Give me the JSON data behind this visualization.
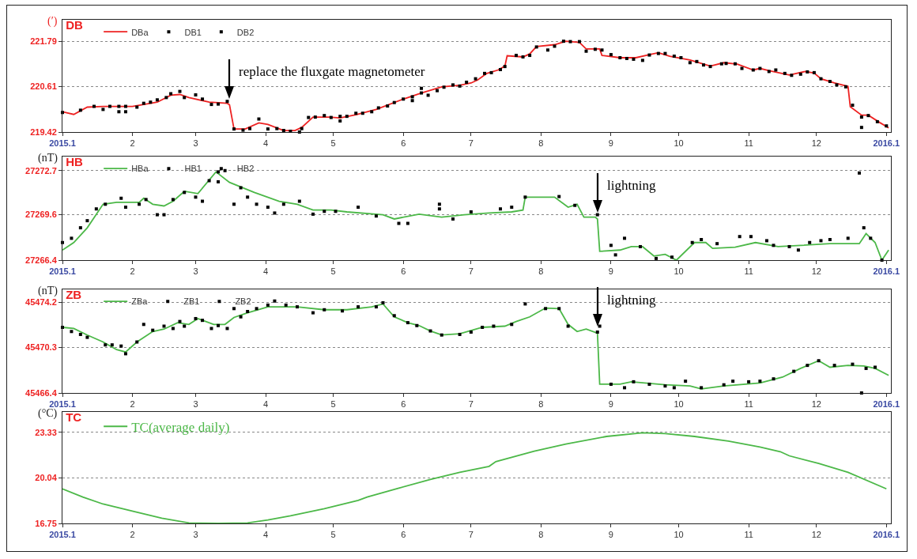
{
  "chart_data": [
    {
      "type": "line",
      "title": "DB",
      "ylabel": "(′)",
      "xlim": [
        "2015-01-01",
        "2016-01-03"
      ],
      "xticks": [
        {
          "value": "2015-01-01",
          "label": "2015.1"
        },
        {
          "value": "2015-02-01",
          "label": "2"
        },
        {
          "value": "2015-03-01",
          "label": "3"
        },
        {
          "value": "2015-04-01",
          "label": "4"
        },
        {
          "value": "2015-05-01",
          "label": "5"
        },
        {
          "value": "2015-06-01",
          "label": "6"
        },
        {
          "value": "2015-07-01",
          "label": "7"
        },
        {
          "value": "2015-08-01",
          "label": "8"
        },
        {
          "value": "2015-09-01",
          "label": "9"
        },
        {
          "value": "2015-10-01",
          "label": "10"
        },
        {
          "value": "2015-11-01",
          "label": "11"
        },
        {
          "value": "2015-12-01",
          "label": "12"
        },
        {
          "value": "2016-01-01",
          "label": "2016.1"
        }
      ],
      "ylim": [
        219.42,
        222.35
      ],
      "yticks": [
        219.42,
        220.61,
        221.79
      ],
      "grid": "y",
      "legend": "top left",
      "series": [
        {
          "name": "DBa",
          "type": "line",
          "color": "#ee2222",
          "x": [
            "2015-01-01",
            "2015-01-06",
            "2015-01-12",
            "2015-01-19",
            "2015-02-01",
            "2015-02-12",
            "2015-02-18",
            "2015-02-22",
            "2015-02-26",
            "2015-03-07",
            "2015-03-15",
            "2015-03-16",
            "2015-03-18",
            "2015-03-23",
            "2015-03-29",
            "2015-04-02",
            "2015-04-09",
            "2015-04-14",
            "2015-04-17",
            "2015-04-22",
            "2015-04-29",
            "2015-05-04",
            "2015-05-11",
            "2015-05-20",
            "2015-06-01",
            "2015-06-09",
            "2015-06-18",
            "2015-06-26",
            "2015-07-01",
            "2015-07-04",
            "2015-07-08",
            "2015-07-13",
            "2015-07-16",
            "2015-07-17",
            "2015-07-24",
            "2015-07-27",
            "2015-07-30",
            "2015-08-07",
            "2015-08-12",
            "2015-08-18",
            "2015-08-21",
            "2015-08-27",
            "2015-08-28",
            "2015-09-05",
            "2015-09-12",
            "2015-09-18",
            "2015-09-22",
            "2015-09-27",
            "2015-10-06",
            "2015-10-15",
            "2015-10-21",
            "2015-10-27",
            "2015-11-03",
            "2015-11-06",
            "2015-11-10",
            "2015-11-19",
            "2015-11-26",
            "2015-11-30",
            "2015-12-03",
            "2015-12-09",
            "2015-12-15",
            "2015-12-16",
            "2015-12-21",
            "2015-12-24",
            "2015-12-29",
            "2016-01-02"
          ],
          "values": [
            219.95,
            219.88,
            220.07,
            220.09,
            220.09,
            220.2,
            220.38,
            220.4,
            220.32,
            220.2,
            220.17,
            220.13,
            219.5,
            219.5,
            219.66,
            219.62,
            219.46,
            219.46,
            219.54,
            219.81,
            219.81,
            219.79,
            219.87,
            220.01,
            220.28,
            220.44,
            220.6,
            220.64,
            220.7,
            220.78,
            220.95,
            221.04,
            221.14,
            221.41,
            221.38,
            221.46,
            221.65,
            221.7,
            221.79,
            221.76,
            221.59,
            221.59,
            221.42,
            221.36,
            221.36,
            221.44,
            221.49,
            221.4,
            221.3,
            221.14,
            221.23,
            221.19,
            221.04,
            221.08,
            221.02,
            220.91,
            221.0,
            220.96,
            220.81,
            220.7,
            220.61,
            220.08,
            219.86,
            219.86,
            219.67,
            219.53
          ]
        },
        {
          "name": "DB1",
          "type": "scatter",
          "marker": "square",
          "color": "#000000",
          "x": [
            "2015-01-01",
            "2015-01-15",
            "2015-01-22",
            "2015-01-26",
            "2015-01-29",
            "2015-02-06",
            "2015-02-12",
            "2015-02-18",
            "2015-02-24",
            "2015-03-04",
            "2015-03-11",
            "2015-03-18",
            "2015-03-25",
            "2015-04-02",
            "2015-04-09",
            "2015-04-16",
            "2015-04-20",
            "2015-04-27",
            "2015-05-04",
            "2015-05-07",
            "2015-05-14",
            "2015-05-21",
            "2015-05-28",
            "2015-06-05",
            "2015-06-09",
            "2015-06-12",
            "2015-06-19",
            "2015-06-26",
            "2015-07-03",
            "2015-07-10",
            "2015-07-16",
            "2015-07-24",
            "2015-07-30",
            "2015-08-07",
            "2015-08-14",
            "2015-08-21",
            "2015-08-28",
            "2015-09-05",
            "2015-09-11",
            "2015-09-18",
            "2015-09-25",
            "2015-10-02",
            "2015-10-09",
            "2015-10-15",
            "2015-10-22",
            "2015-10-29",
            "2015-11-06",
            "2015-11-13",
            "2015-11-20",
            "2015-11-27",
            "2015-12-03",
            "2015-12-10",
            "2015-12-17",
            "2015-12-21",
            "2015-12-28"
          ],
          "values": [
            219.93,
            220.09,
            220.09,
            219.95,
            219.95,
            220.17,
            220.26,
            220.42,
            220.32,
            220.28,
            220.15,
            219.5,
            219.51,
            219.5,
            219.46,
            219.42,
            219.8,
            219.85,
            219.83,
            219.83,
            219.91,
            220.05,
            220.19,
            220.34,
            220.56,
            220.38,
            220.59,
            220.62,
            220.81,
            220.97,
            221.13,
            221.38,
            221.64,
            221.66,
            221.78,
            221.53,
            221.56,
            221.36,
            221.32,
            221.43,
            221.47,
            221.36,
            221.26,
            221.13,
            221.21,
            221.08,
            221.08,
            221.04,
            220.9,
            220.99,
            220.81,
            220.65,
            220.12,
            219.54,
            219.69
          ]
        },
        {
          "name": "DB2",
          "type": "scatter",
          "marker": "square",
          "color": "#000000",
          "x": [
            "2015-01-09",
            "2015-01-19",
            "2015-01-26",
            "2015-01-29",
            "2015-02-03",
            "2015-02-09",
            "2015-02-16",
            "2015-02-22",
            "2015-03-01",
            "2015-03-08",
            "2015-03-15",
            "2015-03-22",
            "2015-03-29",
            "2015-04-06",
            "2015-04-12",
            "2015-04-17",
            "2015-04-23",
            "2015-04-30",
            "2015-05-04",
            "2015-05-11",
            "2015-05-18",
            "2015-05-25",
            "2015-06-01",
            "2015-06-05",
            "2015-06-09",
            "2015-06-16",
            "2015-06-23",
            "2015-06-29",
            "2015-07-07",
            "2015-07-14",
            "2015-07-21",
            "2015-07-27",
            "2015-08-04",
            "2015-08-11",
            "2015-08-18",
            "2015-08-25",
            "2015-09-01",
            "2015-09-08",
            "2015-09-15",
            "2015-09-22",
            "2015-09-29",
            "2015-10-06",
            "2015-10-12",
            "2015-10-20",
            "2015-10-26",
            "2015-11-03",
            "2015-11-10",
            "2015-11-17",
            "2015-11-24",
            "2015-11-30",
            "2015-12-07",
            "2015-12-14",
            "2015-12-21",
            "2015-12-24",
            "2016-01-01"
          ],
          "values": [
            219.99,
            220.01,
            220.09,
            220.09,
            220.07,
            220.2,
            220.32,
            220.48,
            220.39,
            220.14,
            220.22,
            219.47,
            219.76,
            219.51,
            219.44,
            219.51,
            219.81,
            219.8,
            219.71,
            219.91,
            219.95,
            220.1,
            220.28,
            220.24,
            220.44,
            220.5,
            220.65,
            220.72,
            220.95,
            221.05,
            221.42,
            221.42,
            221.56,
            221.79,
            221.78,
            221.58,
            221.44,
            221.34,
            221.29,
            221.47,
            221.4,
            221.23,
            221.17,
            221.2,
            221.2,
            221.04,
            221.0,
            220.95,
            220.93,
            220.97,
            220.74,
            220.6,
            219.81,
            219.85,
            219.58
          ]
        }
      ],
      "annotations": [
        {
          "text": "replace the fluxgate magnetometer",
          "x": "2015-03-16",
          "y": 220.13
        }
      ]
    },
    {
      "type": "line",
      "title": "HB",
      "ylabel": "(nT)",
      "xlim": [
        "2015-01-01",
        "2016-01-03"
      ],
      "xticks": [
        {
          "value": "2015-01-01",
          "label": "2015.1"
        },
        {
          "value": "2015-02-01",
          "label": "2"
        },
        {
          "value": "2015-03-01",
          "label": "3"
        },
        {
          "value": "2015-04-01",
          "label": "4"
        },
        {
          "value": "2015-05-01",
          "label": "5"
        },
        {
          "value": "2015-06-01",
          "label": "6"
        },
        {
          "value": "2015-07-01",
          "label": "7"
        },
        {
          "value": "2015-08-01",
          "label": "8"
        },
        {
          "value": "2015-09-01",
          "label": "9"
        },
        {
          "value": "2015-10-01",
          "label": "10"
        },
        {
          "value": "2015-11-01",
          "label": "11"
        },
        {
          "value": "2015-12-01",
          "label": "12"
        },
        {
          "value": "2016-01-01",
          "label": "2016.1"
        }
      ],
      "ylim": [
        27266.4,
        27273.7
      ],
      "yticks": [
        27266.4,
        27269.6,
        27272.7
      ],
      "grid": "y",
      "legend": "top left",
      "series": [
        {
          "name": "HBa",
          "type": "line",
          "color": "#4cb848",
          "x": [
            "2015-01-01",
            "2015-01-06",
            "2015-01-12",
            "2015-01-19",
            "2015-01-25",
            "2015-02-04",
            "2015-02-06",
            "2015-02-10",
            "2015-02-15",
            "2015-02-19",
            "2015-02-24",
            "2015-03-02",
            "2015-03-10",
            "2015-03-16",
            "2015-03-27",
            "2015-04-07",
            "2015-04-15",
            "2015-04-22",
            "2015-04-30",
            "2015-05-07",
            "2015-05-23",
            "2015-05-28",
            "2015-06-08",
            "2015-06-18",
            "2015-06-28",
            "2015-07-09",
            "2015-07-19",
            "2015-07-24",
            "2015-07-25",
            "2015-08-07",
            "2015-08-13",
            "2015-08-17",
            "2015-08-20",
            "2015-08-25",
            "2015-08-26",
            "2015-08-27",
            "2015-09-05",
            "2015-09-10",
            "2015-09-15",
            "2015-09-20",
            "2015-09-25",
            "2015-09-30",
            "2015-10-08",
            "2015-10-13",
            "2015-10-16",
            "2015-10-26",
            "2015-11-04",
            "2015-11-14",
            "2015-11-24",
            "2015-12-07",
            "2015-12-20",
            "2015-12-23",
            "2015-12-27",
            "2015-12-30",
            "2016-01-02"
          ],
          "values": [
            27267.11,
            27267.64,
            27268.68,
            27270.34,
            27270.47,
            27270.47,
            27270.76,
            27270.34,
            27270.22,
            27270.55,
            27271.25,
            27271.09,
            27272.62,
            27271.88,
            27271.17,
            27270.55,
            27270.34,
            27269.93,
            27269.93,
            27269.8,
            27269.6,
            27269.3,
            27269.64,
            27269.43,
            27269.6,
            27269.72,
            27269.8,
            27269.93,
            27270.84,
            27270.84,
            27270.13,
            27270.34,
            27269.43,
            27269.43,
            27269.3,
            27267.02,
            27267.11,
            27267.35,
            27267.35,
            27266.69,
            27266.81,
            27266.4,
            27267.64,
            27267.64,
            27267.23,
            27267.31,
            27267.64,
            27267.35,
            27267.44,
            27267.56,
            27267.56,
            27268.27,
            27267.64,
            27266.4,
            27267.11
          ]
        },
        {
          "name": "HB1",
          "type": "scatter",
          "marker": "square",
          "color": "#000000",
          "x": [
            "2015-01-01",
            "2015-01-09",
            "2015-01-16",
            "2015-01-27",
            "2015-02-04",
            "2015-02-12",
            "2015-02-19",
            "2015-03-01",
            "2015-03-07",
            "2015-03-11",
            "2015-03-18",
            "2015-03-24",
            "2015-04-02",
            "2015-04-09",
            "2015-04-22",
            "2015-05-02",
            "2015-05-20",
            "2015-06-03",
            "2015-06-17",
            "2015-07-01",
            "2015-07-19",
            "2015-08-09",
            "2015-08-26",
            "2015-09-03",
            "2015-09-14",
            "2015-09-28",
            "2015-10-11",
            "2015-10-28",
            "2015-11-09",
            "2015-11-19",
            "2015-11-28",
            "2015-12-07",
            "2015-12-20",
            "2015-12-25"
          ],
          "values": [
            27267.64,
            27268.68,
            27270.01,
            27270.76,
            27270.34,
            27269.6,
            27270.67,
            27270.84,
            27272.0,
            27271.92,
            27270.34,
            27270.84,
            27270.13,
            27270.34,
            27269.64,
            27269.84,
            27269.51,
            27268.99,
            27270.01,
            27269.8,
            27270.13,
            27270.88,
            27269.6,
            27266.77,
            27267.35,
            27266.61,
            27267.85,
            27268.06,
            27267.77,
            27267.35,
            27267.64,
            27267.85,
            27272.54,
            27267.94
          ]
        },
        {
          "name": "HB2",
          "type": "scatter",
          "marker": "square",
          "color": "#000000",
          "x": [
            "2015-01-05",
            "2015-01-12",
            "2015-01-20",
            "2015-01-29",
            "2015-02-07",
            "2015-02-15",
            "2015-02-24",
            "2015-03-04",
            "2015-03-11",
            "2015-03-14",
            "2015-03-21",
            "2015-03-28",
            "2015-04-05",
            "2015-04-16",
            "2015-04-27",
            "2015-05-12",
            "2015-05-30",
            "2015-06-17",
            "2015-06-23",
            "2015-07-14",
            "2015-07-25",
            "2015-08-16",
            "2015-09-01",
            "2015-09-07",
            "2015-09-21",
            "2015-10-07",
            "2015-10-18",
            "2015-11-02",
            "2015-11-12",
            "2015-11-23",
            "2015-12-03",
            "2015-12-15",
            "2015-12-22",
            "2015-12-30"
          ],
          "values": [
            27267.94,
            27269.18,
            27270.34,
            27270.13,
            27270.67,
            27269.6,
            27271.17,
            27270.55,
            27272.62,
            27272.71,
            27271.5,
            27270.34,
            27269.72,
            27270.55,
            27269.84,
            27270.13,
            27268.99,
            27270.34,
            27269.3,
            27270.01,
            27270.84,
            27270.26,
            27267.44,
            27267.94,
            27266.52,
            27267.64,
            27267.56,
            27268.06,
            27267.44,
            27267.11,
            27267.77,
            27267.94,
            27268.68,
            27266.4
          ]
        }
      ],
      "annotations": [
        {
          "text": "lightning",
          "x": "2015-08-26",
          "y": 27269.3
        }
      ]
    },
    {
      "type": "line",
      "title": "ZB",
      "ylabel": "(nT)",
      "xlim": [
        "2015-01-01",
        "2016-01-03"
      ],
      "xticks": [
        {
          "value": "2015-01-01",
          "label": "2015.1"
        },
        {
          "value": "2015-02-01",
          "label": "2"
        },
        {
          "value": "2015-03-01",
          "label": "3"
        },
        {
          "value": "2015-04-01",
          "label": "4"
        },
        {
          "value": "2015-05-01",
          "label": "5"
        },
        {
          "value": "2015-06-01",
          "label": "6"
        },
        {
          "value": "2015-07-01",
          "label": "7"
        },
        {
          "value": "2015-08-01",
          "label": "8"
        },
        {
          "value": "2015-09-01",
          "label": "9"
        },
        {
          "value": "2015-10-01",
          "label": "10"
        },
        {
          "value": "2015-11-01",
          "label": "11"
        },
        {
          "value": "2015-12-01",
          "label": "12"
        },
        {
          "value": "2016-01-01",
          "label": "2016.1"
        }
      ],
      "ylim": [
        45466.4,
        45475.3
      ],
      "yticks": [
        45466.4,
        45470.3,
        45474.2
      ],
      "grid": "y",
      "legend": "top left",
      "series": [
        {
          "name": "ZBa",
          "type": "line",
          "color": "#4cb848",
          "x": [
            "2015-01-01",
            "2015-01-06",
            "2015-01-12",
            "2015-01-19",
            "2015-01-25",
            "2015-01-29",
            "2015-02-03",
            "2015-02-10",
            "2015-02-15",
            "2015-02-21",
            "2015-02-26",
            "2015-03-02",
            "2015-03-09",
            "2015-03-14",
            "2015-03-18",
            "2015-03-24",
            "2015-04-02",
            "2015-04-15",
            "2015-04-27",
            "2015-05-07",
            "2015-05-18",
            "2015-05-23",
            "2015-05-28",
            "2015-06-03",
            "2015-06-08",
            "2015-06-13",
            "2015-06-18",
            "2015-06-26",
            "2015-07-06",
            "2015-07-16",
            "2015-07-21",
            "2015-07-27",
            "2015-08-03",
            "2015-08-09",
            "2015-08-13",
            "2015-08-17",
            "2015-08-21",
            "2015-08-26",
            "2015-08-27",
            "2015-09-05",
            "2015-09-10",
            "2015-09-25",
            "2015-10-06",
            "2015-10-11",
            "2015-10-21",
            "2015-11-06",
            "2015-11-16",
            "2015-11-24",
            "2015-12-02",
            "2015-12-07",
            "2015-12-15",
            "2015-12-22",
            "2015-12-27",
            "2016-01-02"
          ],
          "values": [
            45472.04,
            45471.94,
            45471.38,
            45470.78,
            45470.12,
            45469.92,
            45470.78,
            45471.68,
            45471.89,
            45472.44,
            45472.29,
            45472.79,
            45472.29,
            45472.29,
            45472.89,
            45473.29,
            45473.8,
            45473.8,
            45473.55,
            45473.55,
            45473.8,
            45474.05,
            45472.94,
            45472.44,
            45472.19,
            45471.73,
            45471.38,
            45471.48,
            45472.04,
            45472.14,
            45472.54,
            45472.94,
            45473.7,
            45473.65,
            45472.29,
            45471.68,
            45471.89,
            45471.53,
            45467.15,
            45467.15,
            45467.36,
            45467.1,
            45467.0,
            45466.75,
            45467.0,
            45467.26,
            45467.76,
            45468.51,
            45469.17,
            45468.61,
            45468.77,
            45468.72,
            45468.51,
            45467.91
          ]
        },
        {
          "name": "ZB1",
          "type": "scatter",
          "marker": "square",
          "color": "#000000",
          "x": [
            "2015-01-01",
            "2015-01-09",
            "2015-01-20",
            "2015-01-27",
            "2015-02-03",
            "2015-02-10",
            "2015-02-19",
            "2015-02-24",
            "2015-03-04",
            "2015-03-11",
            "2015-03-18",
            "2015-03-24",
            "2015-04-02",
            "2015-04-10",
            "2015-04-22",
            "2015-05-05",
            "2015-05-20",
            "2015-05-28",
            "2015-06-07",
            "2015-06-18",
            "2015-07-01",
            "2015-07-11",
            "2015-07-25",
            "2015-08-09",
            "2015-08-26",
            "2015-09-01",
            "2015-09-11",
            "2015-09-25",
            "2015-10-04",
            "2015-10-21",
            "2015-11-01",
            "2015-11-12",
            "2015-11-27",
            "2015-12-09",
            "2015-12-21",
            "2015-12-27"
          ],
          "values": [
            45472.04,
            45471.43,
            45470.53,
            45470.43,
            45470.78,
            45471.79,
            45471.94,
            45472.14,
            45472.64,
            45472.19,
            45473.65,
            45473.4,
            45473.95,
            45473.95,
            45473.29,
            45473.45,
            45473.8,
            45473.04,
            45472.19,
            45471.38,
            45471.63,
            45472.14,
            45474.05,
            45473.65,
            45471.63,
            45467.15,
            45467.36,
            45467.0,
            45467.41,
            45467.1,
            45467.36,
            45467.61,
            45468.77,
            45468.77,
            45466.4,
            45468.61
          ]
        },
        {
          "name": "ZB2",
          "type": "scatter",
          "marker": "square",
          "color": "#000000",
          "x": [
            "2015-01-05",
            "2015-01-12",
            "2015-01-23",
            "2015-01-29",
            "2015-02-06",
            "2015-02-15",
            "2015-02-22",
            "2015-03-01",
            "2015-03-08",
            "2015-03-15",
            "2015-03-21",
            "2015-03-28",
            "2015-04-05",
            "2015-04-15",
            "2015-04-27",
            "2015-05-12",
            "2015-05-23",
            "2015-06-03",
            "2015-06-13",
            "2015-06-26",
            "2015-07-06",
            "2015-07-19",
            "2015-08-03",
            "2015-08-13",
            "2015-08-27",
            "2015-09-07",
            "2015-09-18",
            "2015-09-29",
            "2015-10-11",
            "2015-10-25",
            "2015-11-06",
            "2015-11-21",
            "2015-12-02",
            "2015-12-17",
            "2015-12-23"
          ],
          "values": [
            45471.68,
            45471.18,
            45470.53,
            45469.77,
            45472.29,
            45472.14,
            45472.54,
            45472.79,
            45471.94,
            45471.94,
            45472.94,
            45473.65,
            45474.3,
            45473.8,
            45473.55,
            45473.8,
            45474.15,
            45472.44,
            45471.73,
            45471.43,
            45472.04,
            45472.29,
            45473.65,
            45472.14,
            45472.14,
            45466.85,
            45467.15,
            45466.85,
            45466.85,
            45467.41,
            45467.41,
            45468.26,
            45469.17,
            45468.87,
            45468.51
          ]
        }
      ],
      "annotations": [
        {
          "text": "lightning",
          "x": "2015-08-26",
          "y": 45471.53
        }
      ]
    },
    {
      "type": "line",
      "title": "TC",
      "ylabel": "(°C)",
      "xlim": [
        "2015-01-01",
        "2016-01-03"
      ],
      "xticks": [
        {
          "value": "2015-01-01",
          "label": "2015.1"
        },
        {
          "value": "2015-02-01",
          "label": "2"
        },
        {
          "value": "2015-03-01",
          "label": "3"
        },
        {
          "value": "2015-04-01",
          "label": "4"
        },
        {
          "value": "2015-05-01",
          "label": "5"
        },
        {
          "value": "2015-06-01",
          "label": "6"
        },
        {
          "value": "2015-07-01",
          "label": "7"
        },
        {
          "value": "2015-08-01",
          "label": "8"
        },
        {
          "value": "2015-09-01",
          "label": "9"
        },
        {
          "value": "2015-10-01",
          "label": "10"
        },
        {
          "value": "2015-11-01",
          "label": "11"
        },
        {
          "value": "2015-12-01",
          "label": "12"
        },
        {
          "value": "2016-01-01",
          "label": "2016.1"
        }
      ],
      "ylim": [
        16.75,
        24.8
      ],
      "yticks": [
        16.75,
        20.04,
        23.33
      ],
      "grid": "y",
      "legend": "top left",
      "series": [
        {
          "name": "TC(average daily)",
          "type": "line",
          "color": "#4cb848",
          "x": [
            "2015-01-01",
            "2015-01-10",
            "2015-01-19",
            "2015-02-02",
            "2015-02-14",
            "2015-02-26",
            "2015-03-11",
            "2015-03-24",
            "2015-04-02",
            "2015-04-12",
            "2015-04-27",
            "2015-05-12",
            "2015-05-16",
            "2015-05-30",
            "2015-06-13",
            "2015-06-26",
            "2015-07-09",
            "2015-07-12",
            "2015-07-29",
            "2015-08-12",
            "2015-08-30",
            "2015-09-15",
            "2015-09-25",
            "2015-10-08",
            "2015-10-23",
            "2015-11-06",
            "2015-11-15",
            "2015-11-19",
            "2015-12-02",
            "2015-12-15",
            "2016-01-01"
          ],
          "values": [
            19.25,
            18.66,
            18.15,
            17.6,
            17.13,
            16.79,
            16.75,
            16.79,
            17.0,
            17.3,
            17.81,
            18.41,
            18.66,
            19.3,
            19.93,
            20.44,
            20.87,
            21.21,
            21.97,
            22.48,
            23.03,
            23.29,
            23.24,
            23.03,
            22.69,
            22.27,
            21.93,
            21.63,
            21.08,
            20.44,
            19.25
          ]
        }
      ]
    }
  ]
}
